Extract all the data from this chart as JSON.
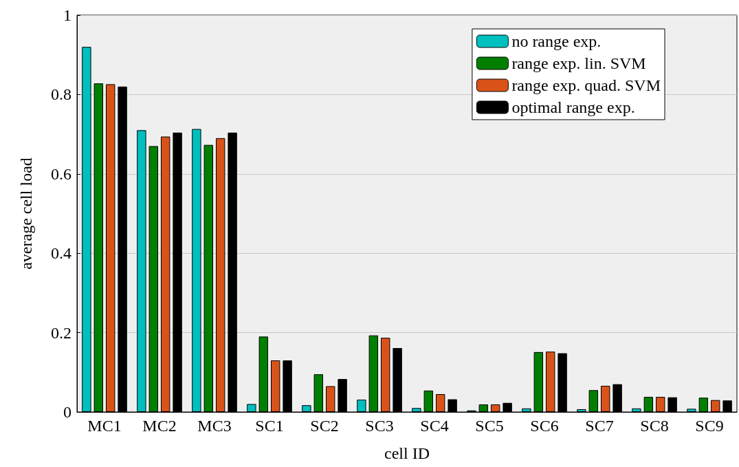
{
  "chart_data": {
    "type": "bar",
    "xlabel": "cell ID",
    "ylabel": "average cell load",
    "categories": [
      "MC1",
      "MC2",
      "MC3",
      "SC1",
      "SC2",
      "SC3",
      "SC4",
      "SC5",
      "SC6",
      "SC7",
      "SC8",
      "SC9"
    ],
    "series": [
      {
        "name": "no range exp.",
        "color": "#00bfbf",
        "values": [
          0.92,
          0.71,
          0.713,
          0.02,
          0.017,
          0.031,
          0.01,
          0.004,
          0.009,
          0.007,
          0.009,
          0.008
        ]
      },
      {
        "name": "range exp. lin. SVM",
        "color": "#007f00",
        "values": [
          0.828,
          0.67,
          0.673,
          0.19,
          0.095,
          0.193,
          0.054,
          0.019,
          0.151,
          0.055,
          0.038,
          0.036
        ]
      },
      {
        "name": "range exp. quad. SVM",
        "color": "#d95319",
        "values": [
          0.826,
          0.694,
          0.69,
          0.13,
          0.065,
          0.187,
          0.045,
          0.019,
          0.152,
          0.066,
          0.038,
          0.03
        ]
      },
      {
        "name": "optimal range exp.",
        "color": "#000000",
        "values": [
          0.82,
          0.704,
          0.704,
          0.13,
          0.083,
          0.161,
          0.032,
          0.023,
          0.148,
          0.07,
          0.037,
          0.029
        ]
      }
    ],
    "ylim": [
      0,
      1
    ],
    "yticks": [
      0,
      0.2,
      0.4,
      0.6,
      0.8,
      1
    ],
    "grid": "y",
    "legend": "top right"
  }
}
